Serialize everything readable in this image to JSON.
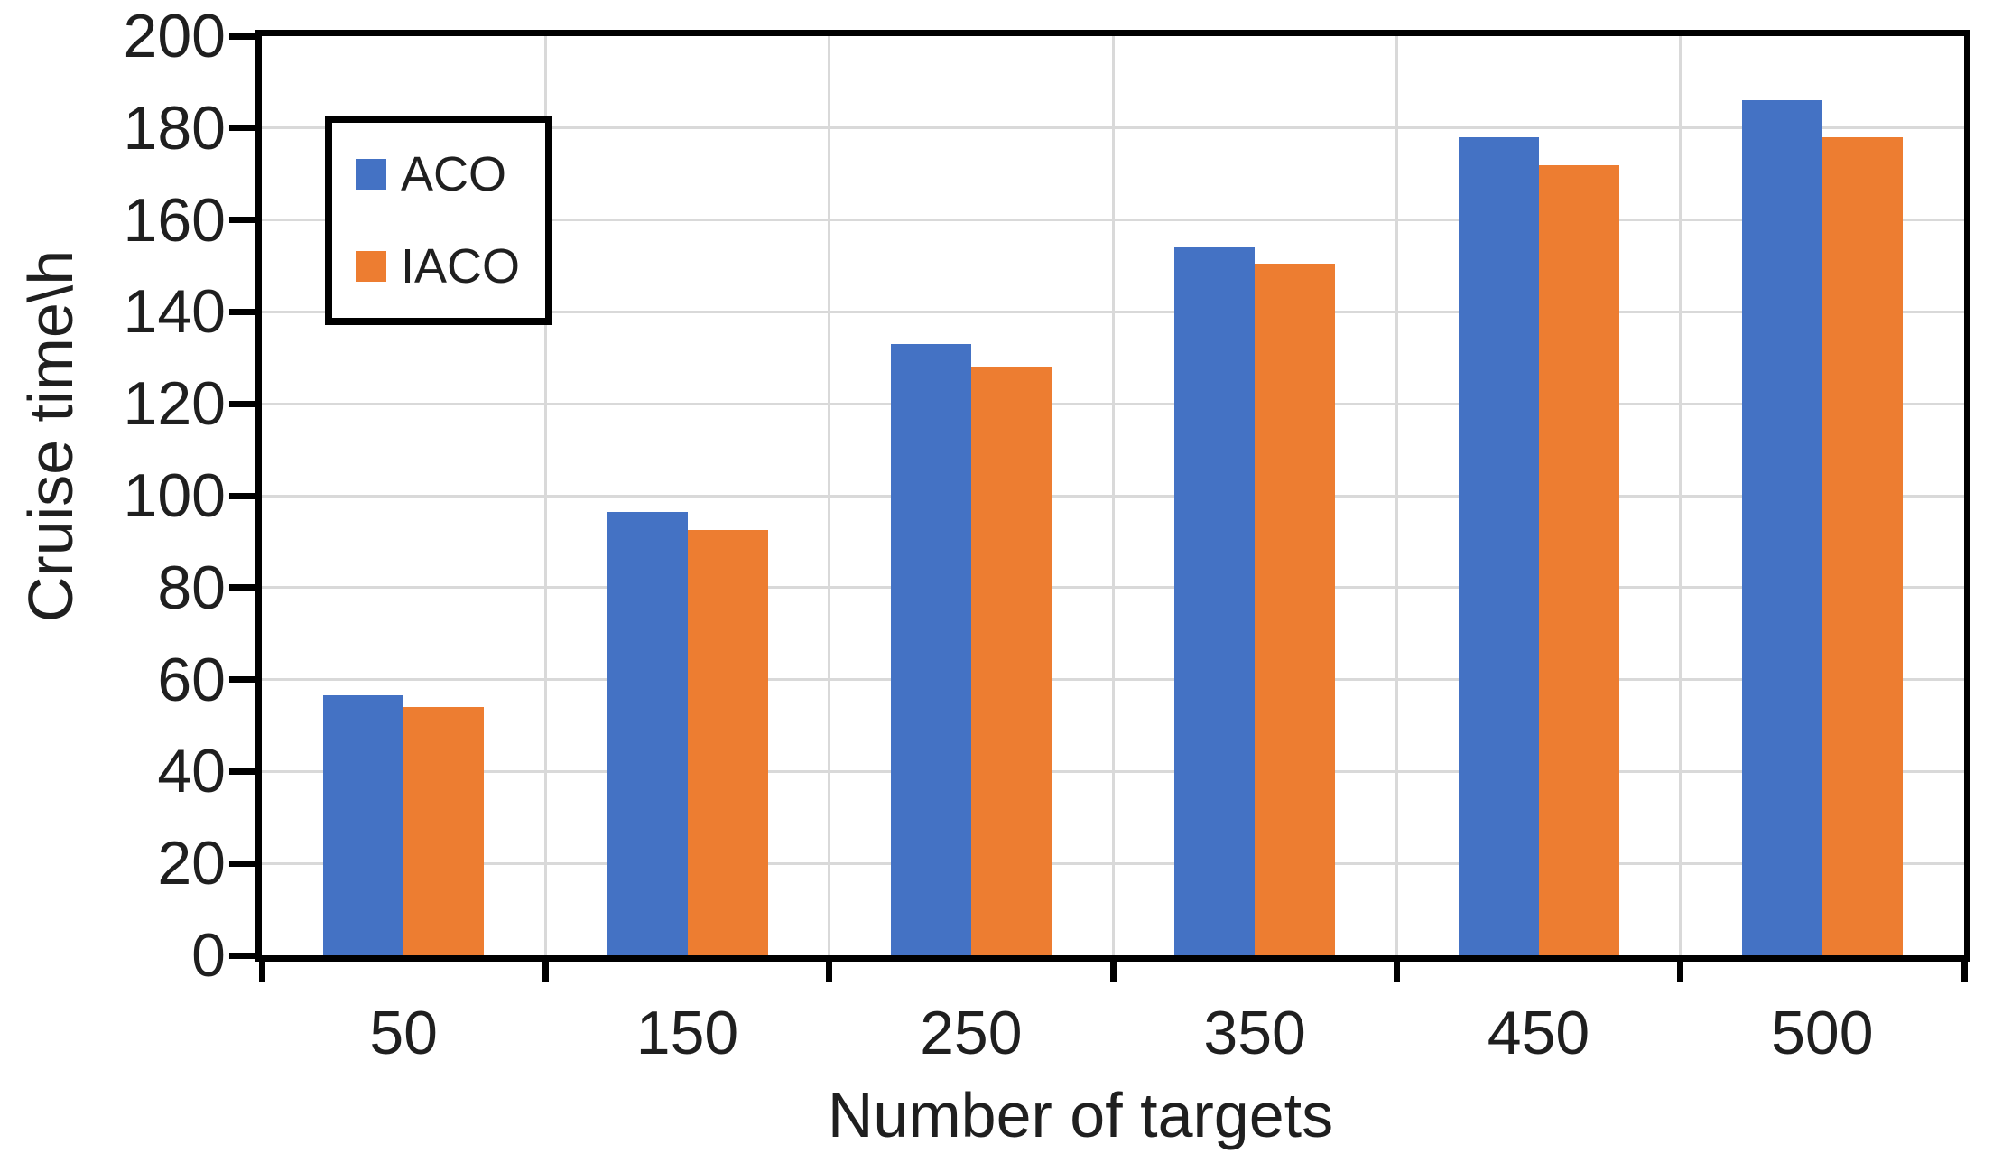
{
  "chart_data": {
    "type": "bar",
    "title": "",
    "xlabel": "Number of targets",
    "ylabel": "Cruise time\\h",
    "categories": [
      "50",
      "150",
      "250",
      "350",
      "450",
      "500"
    ],
    "series": [
      {
        "name": "ACO",
        "color": "#4472C4",
        "values": [
          56.5,
          96.5,
          133,
          154,
          178,
          186
        ]
      },
      {
        "name": "IACO",
        "color": "#ED7D31",
        "values": [
          54,
          92.5,
          128,
          150.5,
          172,
          178
        ]
      }
    ],
    "ylim": [
      0,
      200
    ],
    "ytick_step": 20,
    "grid": true,
    "gridline_color": "#D9D9D9",
    "axis_color": "#000000",
    "text_color": "#1F1F1F",
    "legend_position": "top-left",
    "legend_border_color": "#000000",
    "plot_background": "#FFFFFF"
  }
}
